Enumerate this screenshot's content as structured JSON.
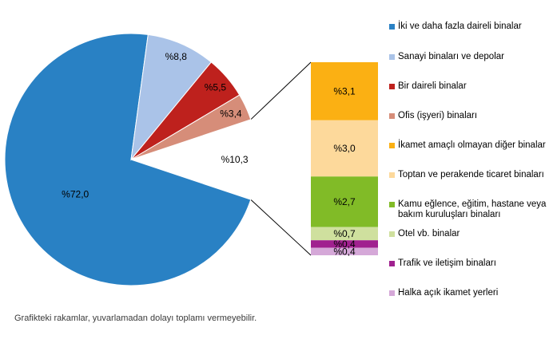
{
  "chart_data": {
    "type": "bar-of-pie",
    "title": "",
    "value_format": "Turkish percent (% before number, comma decimal)",
    "legend_position": "right",
    "pie": {
      "slices": [
        {
          "label": "İki ve daha fazla daireli binalar",
          "value": 72.0,
          "display": "%72,0",
          "color": "#2981C4",
          "is_other": false
        },
        {
          "label": "Sanayi binaları ve depolar",
          "value": 8.8,
          "display": "%8,8",
          "color": "#AAC3E8",
          "is_other": false
        },
        {
          "label": "Bir daireli binalar",
          "value": 5.5,
          "display": "%5,5",
          "color": "#BE211D",
          "is_other": false
        },
        {
          "label": "Ofis (işyeri) binaları",
          "value": 3.4,
          "display": "%3,4",
          "color": "#D68D79",
          "is_other": false
        },
        {
          "label": "",
          "value": 10.3,
          "display": "%10,3",
          "color": "#FFFFFF",
          "is_other": true
        }
      ]
    },
    "bar": {
      "segments": [
        {
          "label": "İkamet amaçlı olmayan diğer binalar",
          "value": 3.1,
          "display": "%3,1",
          "color": "#FBB013"
        },
        {
          "label": "Toptan ve perakende ticaret binaları",
          "value": 3.0,
          "display": "%3,0",
          "color": "#FDD99B"
        },
        {
          "label": "Kamu eğlence, eğitim, hastane veya bakım kuruluşları binaları",
          "value": 2.7,
          "display": "%2,7",
          "color": "#81BB27"
        },
        {
          "label": "Otel vb. binalar",
          "value": 0.7,
          "display": "%0,7",
          "color": "#CFE09E"
        },
        {
          "label": "Trafik ve iletişim binaları",
          "value": 0.4,
          "display": "%0,4",
          "color": "#A0218F"
        },
        {
          "label": "Halka açık ikamet yerleri",
          "value": 0.4,
          "display": "%0,4",
          "color": "#D5A8D8"
        }
      ]
    },
    "legend": [
      {
        "label": "İki ve daha fazla daireli binalar",
        "color": "#2981C4"
      },
      {
        "label": "Sanayi binaları ve depolar",
        "color": "#AAC3E8"
      },
      {
        "label": "Bir daireli binalar",
        "color": "#BE211D"
      },
      {
        "label": "Ofis (işyeri) binaları",
        "color": "#D68D79"
      },
      {
        "label": "İkamet amaçlı olmayan diğer binalar",
        "color": "#FBB013"
      },
      {
        "label": "Toptan ve perakende ticaret binaları",
        "color": "#FDD99B"
      },
      {
        "label": "Kamu eğlence, eğitim, hastane veya bakım kuruluşları binaları",
        "color": "#81BB27"
      },
      {
        "label": "Otel vb. binalar",
        "color": "#CFE09E"
      },
      {
        "label": "Trafik ve iletişim binaları",
        "color": "#A0218F"
      },
      {
        "label": "Halka açık ikamet yerleri",
        "color": "#D5A8D8"
      }
    ]
  },
  "footnote": "Grafikteki rakamlar, yuvarlamadan dolayı toplamı vermeyebilir."
}
